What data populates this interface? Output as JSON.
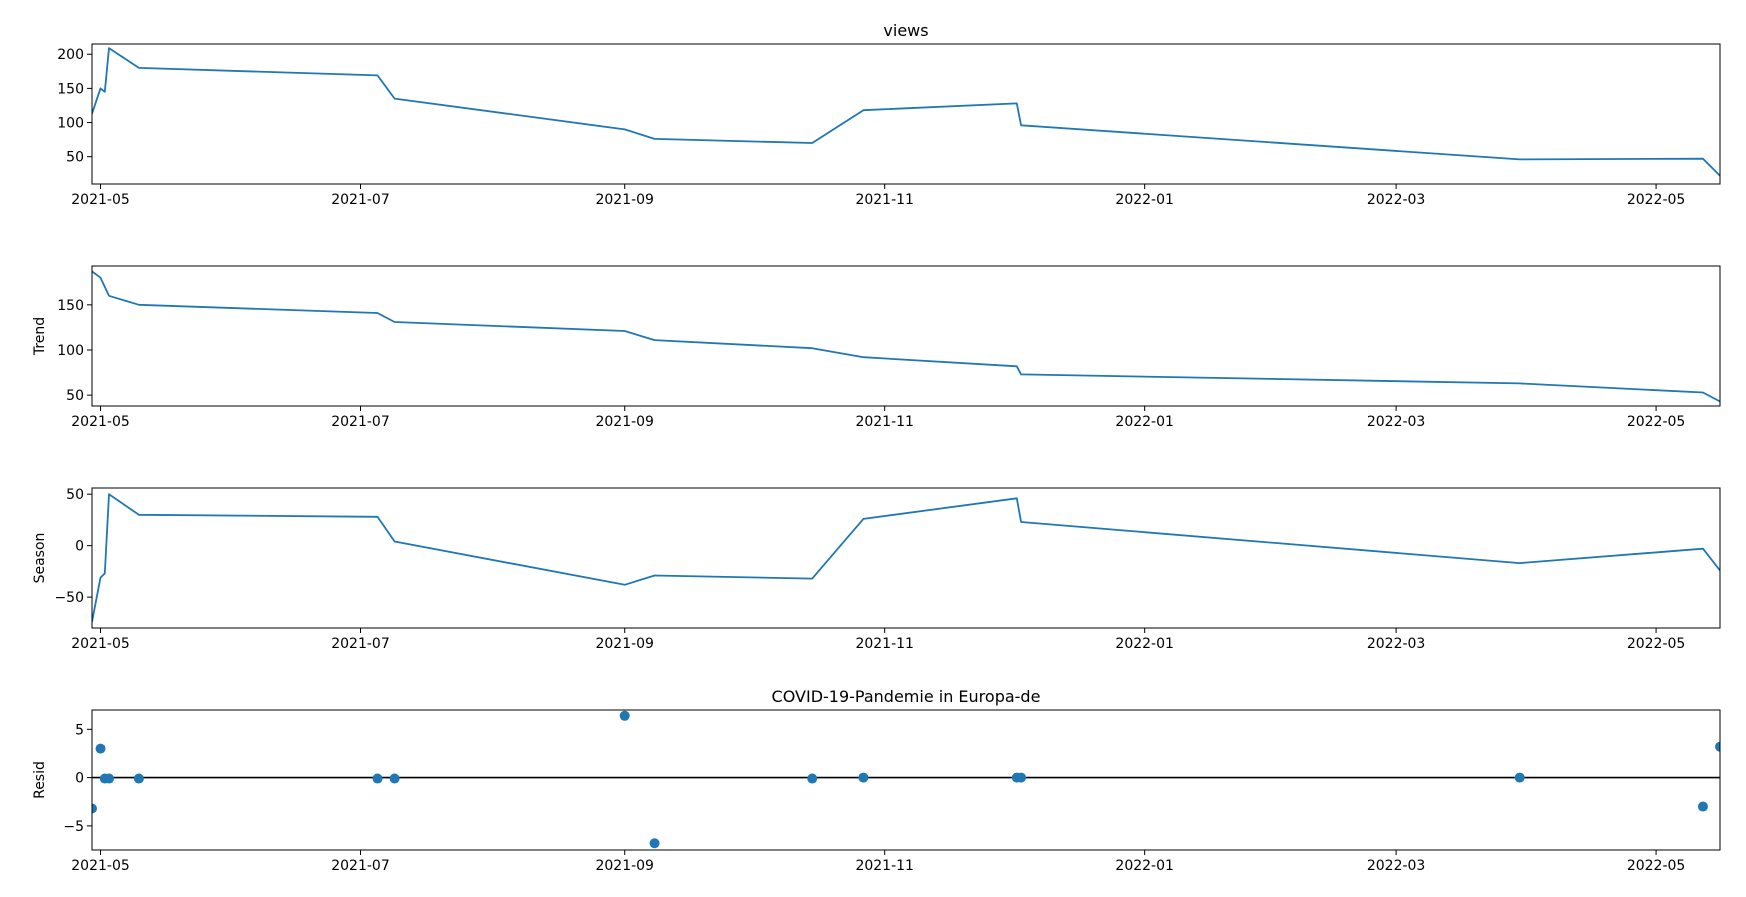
{
  "chart_data": [
    {
      "type": "line",
      "title": "views",
      "xlabel": "",
      "ylabel": "",
      "x_tick_labels": [
        "2021-05",
        "2021-07",
        "2021-09",
        "2021-11",
        "2022-01",
        "2022-03",
        "2022-05"
      ],
      "y_tick_labels": [
        "50",
        "100",
        "150",
        "200"
      ],
      "ylim": [
        10,
        215
      ],
      "grid": false,
      "series": [
        {
          "color": "#1f77b4",
          "x": [
            "2021-04-29",
            "2021-05-01",
            "2021-05-02",
            "2021-05-03",
            "2021-05-10",
            "2021-07-05",
            "2021-07-09",
            "2021-09-01",
            "2021-09-08",
            "2021-10-15",
            "2021-10-27",
            "2021-12-02",
            "2021-12-03",
            "2022-03-30",
            "2022-05-12",
            "2022-05-16"
          ],
          "y": [
            113,
            150,
            145,
            209,
            180,
            169,
            135,
            90,
            76,
            70,
            118,
            128,
            96,
            46,
            47,
            22
          ]
        }
      ]
    },
    {
      "type": "line",
      "title": "",
      "xlabel": "",
      "ylabel": "Trend",
      "x_tick_labels": [
        "2021-05",
        "2021-07",
        "2021-09",
        "2021-11",
        "2022-01",
        "2022-03",
        "2022-05"
      ],
      "y_tick_labels": [
        "50",
        "100",
        "150"
      ],
      "ylim": [
        38,
        193
      ],
      "grid": false,
      "series": [
        {
          "color": "#1f77b4",
          "x": [
            "2021-04-29",
            "2021-05-01",
            "2021-05-03",
            "2021-05-10",
            "2021-07-05",
            "2021-07-09",
            "2021-09-01",
            "2021-09-08",
            "2021-10-15",
            "2021-10-27",
            "2021-12-02",
            "2021-12-03",
            "2022-03-30",
            "2022-05-12",
            "2022-05-16"
          ],
          "y": [
            187,
            180,
            160,
            150,
            141,
            131,
            121,
            111,
            102,
            92,
            82,
            73,
            63,
            53,
            43
          ]
        }
      ]
    },
    {
      "type": "line",
      "title": "",
      "xlabel": "",
      "ylabel": "Season",
      "x_tick_labels": [
        "2021-05",
        "2021-07",
        "2021-09",
        "2021-11",
        "2022-01",
        "2022-03",
        "2022-05"
      ],
      "y_tick_labels": [
        "−50",
        "0",
        "50"
      ],
      "ylim": [
        -80,
        56
      ],
      "grid": false,
      "series": [
        {
          "color": "#1f77b4",
          "x": [
            "2021-04-29",
            "2021-05-01",
            "2021-05-02",
            "2021-05-03",
            "2021-05-10",
            "2021-07-05",
            "2021-07-09",
            "2021-09-01",
            "2021-09-08",
            "2021-10-15",
            "2021-10-27",
            "2021-12-02",
            "2021-12-03",
            "2022-03-30",
            "2022-05-12",
            "2022-05-16"
          ],
          "y": [
            -74,
            -31,
            -27,
            50,
            30,
            28,
            4,
            -38,
            -29,
            -32,
            26,
            46,
            23,
            -17,
            -3,
            -24
          ]
        }
      ]
    },
    {
      "type": "scatter",
      "title": "COVID-19-Pandemie in Europa-de",
      "xlabel": "",
      "ylabel": "Resid",
      "x_tick_labels": [
        "2021-05",
        "2021-07",
        "2021-09",
        "2021-11",
        "2022-01",
        "2022-03",
        "2022-05"
      ],
      "y_tick_labels": [
        "−5",
        "0",
        "5"
      ],
      "ylim": [
        -7.5,
        7
      ],
      "grid": false,
      "baseline": 0,
      "series": [
        {
          "color": "#1f77b4",
          "x": [
            "2021-04-29",
            "2021-05-01",
            "2021-05-02",
            "2021-05-03",
            "2021-05-10",
            "2021-07-05",
            "2021-07-09",
            "2021-09-01",
            "2021-09-08",
            "2021-10-15",
            "2021-10-27",
            "2021-12-02",
            "2021-12-03",
            "2022-03-30",
            "2022-05-12",
            "2022-05-16"
          ],
          "y": [
            -3.2,
            3.0,
            -0.1,
            -0.1,
            -0.1,
            -0.1,
            -0.1,
            6.4,
            -6.8,
            -0.1,
            0.0,
            0.0,
            0.0,
            0.0,
            -3.0,
            3.2
          ]
        }
      ]
    }
  ]
}
